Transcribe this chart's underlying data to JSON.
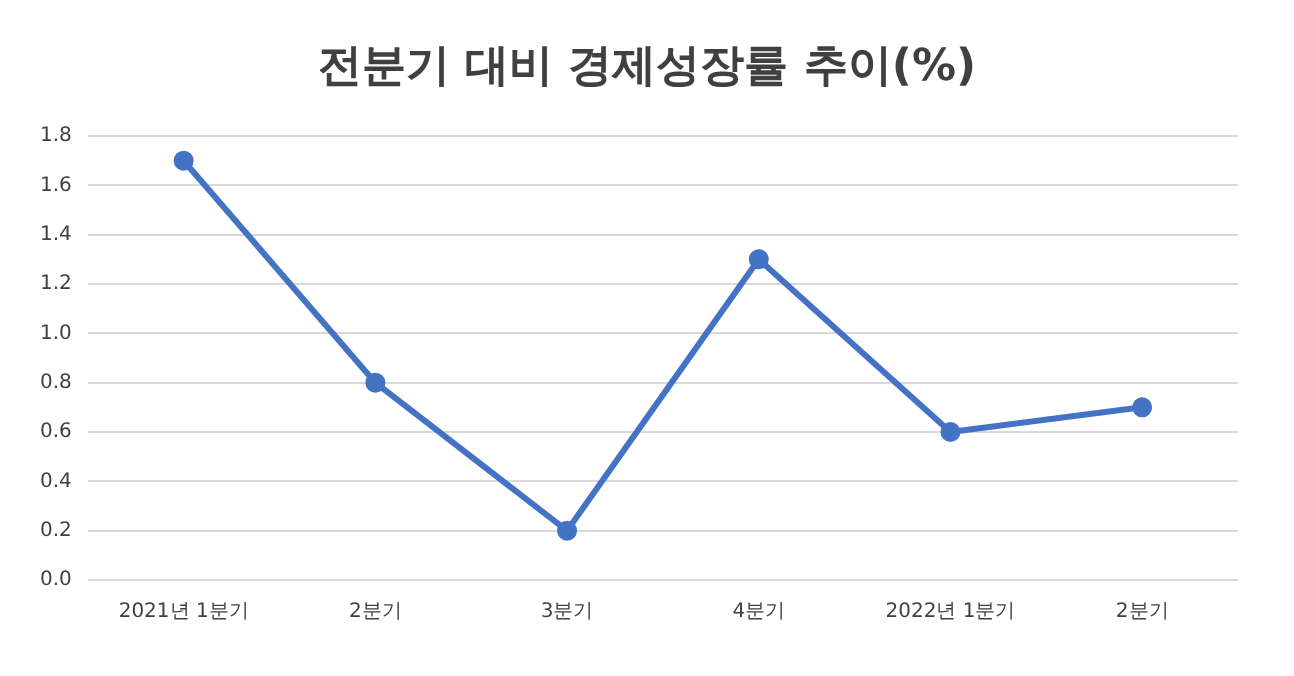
{
  "chart_data": {
    "type": "line",
    "title": "전분기 대비 경제성장률 추이(%)",
    "categories": [
      "2021년 1분기",
      "2분기",
      "3분기",
      "4분기",
      "2022년 1분기",
      "2분기"
    ],
    "series": [
      {
        "color": "#4472c4",
        "values": [
          1.7,
          0.8,
          0.2,
          1.3,
          0.6,
          0.7
        ]
      }
    ],
    "ylim": [
      0,
      1.8
    ],
    "yticks": [
      {
        "value": 0,
        "label": "0.0"
      },
      {
        "value": 0.2,
        "label": "0.2"
      },
      {
        "value": 0.4,
        "label": "0.4"
      },
      {
        "value": 0.6,
        "label": "0.6"
      },
      {
        "value": 0.8,
        "label": "0.8"
      },
      {
        "value": 1,
        "label": "1.0"
      },
      {
        "value": 1.2,
        "label": "1.2"
      },
      {
        "value": 1.4,
        "label": "1.4"
      },
      {
        "value": 1.6,
        "label": "1.6"
      },
      {
        "value": 1.8,
        "label": "1.8"
      }
    ],
    "grid": "y",
    "legend": false,
    "marker": "circle",
    "line_style": "solid"
  }
}
